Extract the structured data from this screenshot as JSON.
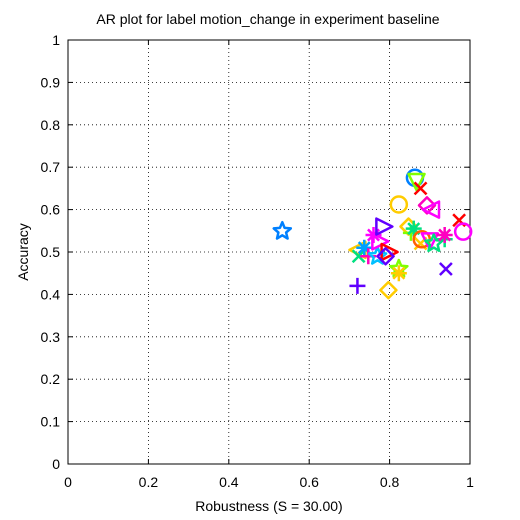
{
  "chart_data": {
    "type": "scatter",
    "title": "AR plot for label motion_change in experiment baseline",
    "xlabel": "Robustness (S = 30.00)",
    "ylabel": "Accuracy",
    "xlim": [
      0,
      1
    ],
    "ylim": [
      0,
      1
    ],
    "x_ticks": [
      0,
      0.2,
      0.4,
      0.6,
      0.8,
      1
    ],
    "x_tick_labels": [
      "0",
      "0.2",
      "0.4",
      "0.6",
      "0.8",
      "1"
    ],
    "y_ticks": [
      0,
      0.1,
      0.2,
      0.3,
      0.4,
      0.5,
      0.6,
      0.7,
      0.8,
      0.9,
      1
    ],
    "y_tick_labels": [
      "0",
      "0.1",
      "0.2",
      "0.3",
      "0.4",
      "0.5",
      "0.6",
      "0.7",
      "0.8",
      "0.9",
      "1"
    ],
    "grid": true,
    "legend": "none",
    "points": [
      {
        "x": 0.533,
        "y": 0.549,
        "marker": "star",
        "color": "#0080ff"
      },
      {
        "x": 0.72,
        "y": 0.505,
        "marker": "triangle-left",
        "color": "#ffcc00"
      },
      {
        "x": 0.72,
        "y": 0.42,
        "marker": "plus",
        "color": "#6000ff"
      },
      {
        "x": 0.723,
        "y": 0.49,
        "marker": "x",
        "color": "#00e080"
      },
      {
        "x": 0.737,
        "y": 0.51,
        "marker": "asterisk",
        "color": "#00a0ff"
      },
      {
        "x": 0.747,
        "y": 0.49,
        "marker": "plus",
        "color": "#ff00c0"
      },
      {
        "x": 0.76,
        "y": 0.54,
        "marker": "asterisk",
        "color": "#ff00ff"
      },
      {
        "x": 0.77,
        "y": 0.49,
        "marker": "star",
        "color": "#00c0ff"
      },
      {
        "x": 0.777,
        "y": 0.525,
        "marker": "triangle-right",
        "color": "#ff00ff"
      },
      {
        "x": 0.787,
        "y": 0.56,
        "marker": "triangle-right",
        "color": "#6000ff"
      },
      {
        "x": 0.797,
        "y": 0.41,
        "marker": "diamond",
        "color": "#ffcc00"
      },
      {
        "x": 0.8,
        "y": 0.5,
        "marker": "triangle-right",
        "color": "#ff0000"
      },
      {
        "x": 0.79,
        "y": 0.49,
        "marker": "diamond",
        "color": "#6000ff"
      },
      {
        "x": 0.823,
        "y": 0.46,
        "marker": "star",
        "color": "#80ff00"
      },
      {
        "x": 0.823,
        "y": 0.45,
        "marker": "asterisk",
        "color": "#ffcc00"
      },
      {
        "x": 0.823,
        "y": 0.612,
        "marker": "circle",
        "color": "#ffcc00"
      },
      {
        "x": 0.847,
        "y": 0.56,
        "marker": "diamond",
        "color": "#ffcc00"
      },
      {
        "x": 0.853,
        "y": 0.545,
        "marker": "plus",
        "color": "#80ff00"
      },
      {
        "x": 0.86,
        "y": 0.555,
        "marker": "asterisk",
        "color": "#00e080"
      },
      {
        "x": 0.863,
        "y": 0.675,
        "marker": "circle",
        "color": "#0080ff"
      },
      {
        "x": 0.867,
        "y": 0.665,
        "marker": "triangle-down",
        "color": "#80ff00"
      },
      {
        "x": 0.877,
        "y": 0.65,
        "marker": "x",
        "color": "#ff0000"
      },
      {
        "x": 0.877,
        "y": 0.52,
        "marker": "x",
        "color": "#ffcc00"
      },
      {
        "x": 0.88,
        "y": 0.53,
        "marker": "circle",
        "color": "#ff6000"
      },
      {
        "x": 0.893,
        "y": 0.61,
        "marker": "diamond",
        "color": "#ff00c0"
      },
      {
        "x": 0.9,
        "y": 0.525,
        "marker": "triangle-down",
        "color": "#ff00ff"
      },
      {
        "x": 0.903,
        "y": 0.6,
        "marker": "triangle-left",
        "color": "#ff00ff"
      },
      {
        "x": 0.91,
        "y": 0.52,
        "marker": "star",
        "color": "#00e080"
      },
      {
        "x": 0.937,
        "y": 0.53,
        "marker": "plus",
        "color": "#00e080"
      },
      {
        "x": 0.937,
        "y": 0.54,
        "marker": "asterisk",
        "color": "#ff00c0"
      },
      {
        "x": 0.94,
        "y": 0.46,
        "marker": "x",
        "color": "#6000ff"
      },
      {
        "x": 0.973,
        "y": 0.575,
        "marker": "x",
        "color": "#ff0000"
      },
      {
        "x": 0.983,
        "y": 0.548,
        "marker": "circle",
        "color": "#ff00ff"
      }
    ]
  }
}
